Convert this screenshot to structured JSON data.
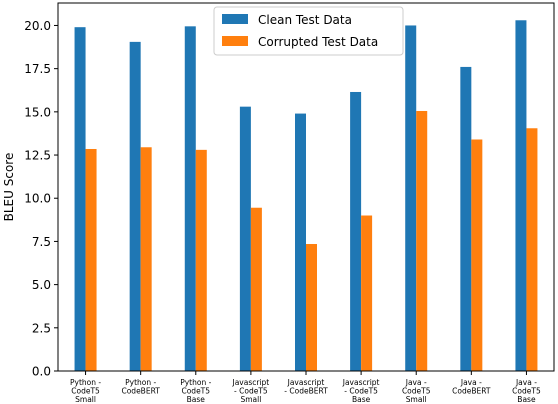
{
  "chart_data": {
    "type": "bar",
    "title": "",
    "xlabel": "",
    "ylabel": "BLEU Score",
    "ylim": [
      0,
      21.3
    ],
    "yticks": [
      "0.0",
      "2.5",
      "5.0",
      "7.5",
      "10.0",
      "12.5",
      "15.0",
      "17.5",
      "20.0"
    ],
    "grid": false,
    "legend_position": "top-center",
    "categories": [
      [
        "Python -",
        "CodeT5",
        "Small"
      ],
      [
        "Python -",
        "CodeBERT"
      ],
      [
        "Python -",
        "CodeT5",
        "Base"
      ],
      [
        "Javascript",
        "- CodeT5",
        "Small"
      ],
      [
        "Javascript",
        "- CodeBERT"
      ],
      [
        "Javascript",
        "- CodeT5",
        "Base"
      ],
      [
        "Java -",
        "CodeT5",
        "Small"
      ],
      [
        "Java -",
        "CodeBERT"
      ],
      [
        "Java -",
        "CodeT5",
        "Base"
      ]
    ],
    "series": [
      {
        "name": "Clean Test Data",
        "color": "#1f77b4",
        "values": [
          19.9,
          19.05,
          19.95,
          15.3,
          14.9,
          16.15,
          20.0,
          17.6,
          20.3
        ]
      },
      {
        "name": "Corrupted Test Data",
        "color": "#ff7f0e",
        "values": [
          12.85,
          12.95,
          12.8,
          9.45,
          7.35,
          9.0,
          15.05,
          13.4,
          14.05
        ]
      }
    ]
  }
}
